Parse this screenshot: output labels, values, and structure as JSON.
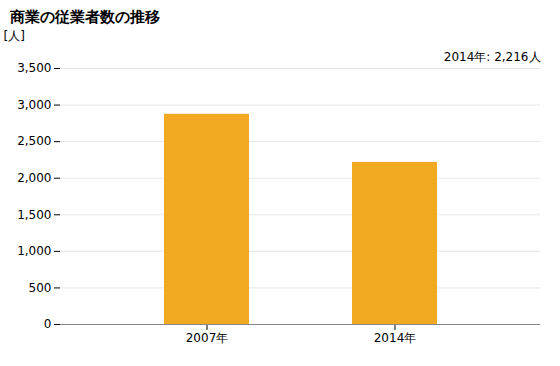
{
  "chart_data": {
    "type": "bar",
    "title": "商業の従業者数の推移",
    "ylabel": "[人]",
    "categories": [
      "2007年",
      "2014年"
    ],
    "values": [
      2874,
      2216
    ],
    "color": "#F2A922",
    "annotation": "2014年: 2,216人",
    "ylim": [
      0,
      3500
    ],
    "yticks": [
      0,
      500,
      {
        "value": 1000,
        "label": "1,000"
      },
      {
        "value": 1500,
        "label": "1,500"
      },
      {
        "value": 2000,
        "label": "2,000"
      },
      {
        "value": 2500,
        "label": "2,500"
      },
      {
        "value": 3000,
        "label": "3,000"
      },
      {
        "value": 3500,
        "label": "3,500"
      }
    ],
    "grid": true
  }
}
